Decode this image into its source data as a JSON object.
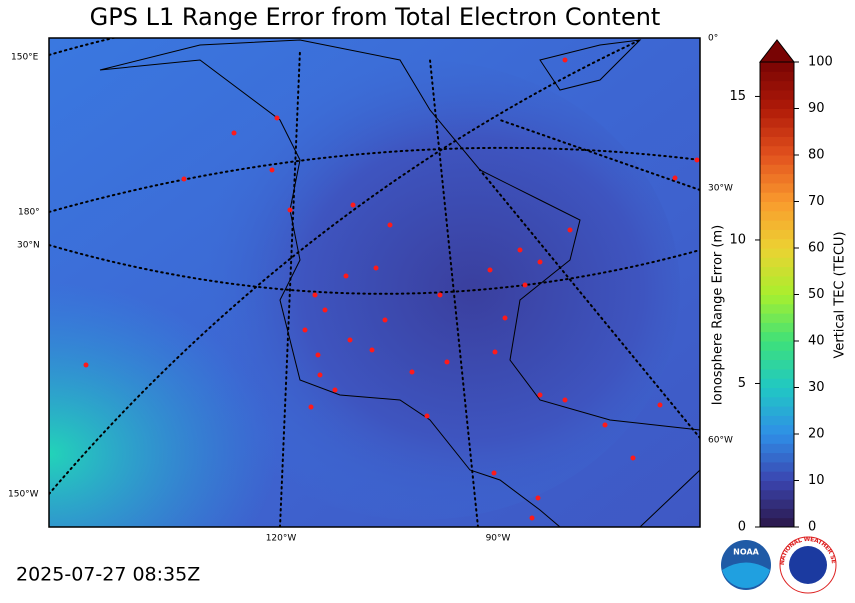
{
  "title": "GPS L1 Range Error from Total Electron Content",
  "map": {
    "graticule_labels": [
      "150°E",
      "180°",
      "30°N",
      "150°W",
      "0°",
      "30°W",
      "60°W",
      "120°W",
      "90°W"
    ]
  },
  "colorbar": {
    "tec_label": "Vertical TEC (TECU)",
    "tec_lim": [
      0,
      100
    ],
    "tec_ticks": [
      0,
      10,
      20,
      30,
      40,
      50,
      60,
      70,
      80,
      90,
      100
    ],
    "range_label": "Ionosphere Range Error (m)",
    "range_lim": [
      0,
      16.2
    ],
    "range_ticks": [
      0,
      5,
      10,
      15
    ]
  },
  "timestamp": "2025-07-27 08:35Z",
  "logos": {
    "noaa": "NOAA",
    "nws": "NATIONAL WEATHER SERVICE"
  }
}
